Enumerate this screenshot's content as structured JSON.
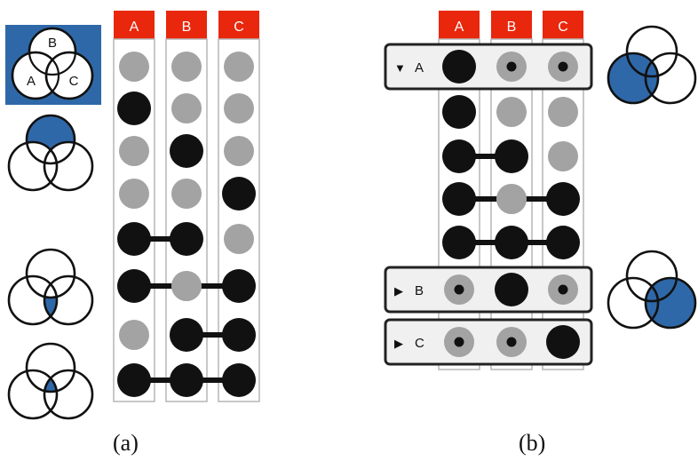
{
  "colors": {
    "header": "#e8270c",
    "header_text": "#ffffff",
    "set_fill": "#2f68a8",
    "dot_black": "#111111",
    "dot_gray": "#a3a3a3",
    "column_border": "#b5b5b5",
    "group_fill": "#f0f0f0",
    "group_border": "#222222",
    "venn_stroke": "#111111"
  },
  "panel_a": {
    "caption": "(a)",
    "columns": [
      "A",
      "B",
      "C"
    ],
    "legend_labels": [
      "A",
      "B",
      "C"
    ],
    "rows": [
      {
        "members": [
          0,
          0,
          0
        ]
      },
      {
        "members": [
          1,
          0,
          0
        ]
      },
      {
        "members": [
          0,
          1,
          0
        ]
      },
      {
        "members": [
          0,
          0,
          1
        ]
      },
      {
        "members": [
          1,
          1,
          0
        ]
      },
      {
        "members": [
          1,
          0,
          1
        ]
      },
      {
        "members": [
          0,
          1,
          1
        ]
      },
      {
        "members": [
          1,
          1,
          1
        ]
      }
    ]
  },
  "panel_b": {
    "caption": "(b)",
    "columns": [
      "A",
      "B",
      "C"
    ],
    "groups": [
      {
        "label": "A",
        "arrow": "▼",
        "expanded": true,
        "members": [
          1,
          0,
          0
        ]
      },
      {
        "label": "B",
        "arrow": "▶",
        "expanded": false,
        "members": [
          0,
          1,
          0
        ]
      },
      {
        "label": "C",
        "arrow": "▶",
        "expanded": false,
        "members": [
          0,
          0,
          1
        ]
      }
    ],
    "subrows_of_A": [
      {
        "members": [
          1,
          0,
          0
        ]
      },
      {
        "members": [
          1,
          1,
          0
        ]
      },
      {
        "members": [
          1,
          0,
          1
        ]
      },
      {
        "members": [
          1,
          1,
          1
        ]
      }
    ]
  }
}
